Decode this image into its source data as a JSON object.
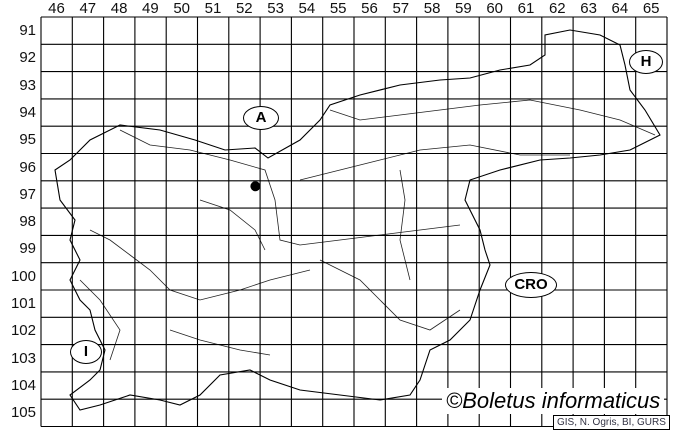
{
  "map": {
    "columns": [
      "46",
      "47",
      "48",
      "49",
      "50",
      "51",
      "52",
      "53",
      "54",
      "55",
      "56",
      "57",
      "58",
      "59",
      "60",
      "61",
      "62",
      "63",
      "64",
      "65"
    ],
    "rows": [
      "91",
      "92",
      "93",
      "94",
      "95",
      "96",
      "97",
      "98",
      "99",
      "100",
      "101",
      "102",
      "103",
      "104",
      "105"
    ],
    "neighbours": {
      "austria": "A",
      "hungary": "H",
      "croatia": "CRO",
      "italy": "I"
    },
    "record_marker": {
      "column_square": "52",
      "row_square": "97",
      "color": "#000000"
    },
    "copyright": "©Boletus informaticus",
    "credit": "GIS, N. Ogris, BI, GURS"
  }
}
